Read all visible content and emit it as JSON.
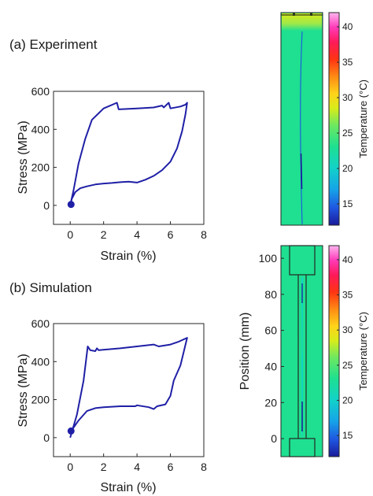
{
  "chart_data": [
    {
      "type": "line",
      "title": "(a) Experiment",
      "xlabel": "Strain (%)",
      "ylabel": "Stress (MPa)",
      "xlim": [
        -1,
        8
      ],
      "ylim": [
        -100,
        600
      ],
      "xticks": [
        0,
        2,
        4,
        6,
        8
      ],
      "yticks": [
        0,
        200,
        400,
        600
      ],
      "line_color": "#1f1fa6",
      "series": [
        {
          "x": [
            0.0,
            0.2,
            0.5,
            0.9,
            1.3,
            2.0,
            2.8,
            2.9,
            4.0,
            5.0,
            5.5,
            5.6,
            5.9,
            6.0,
            6.6,
            6.9,
            7.0,
            6.9,
            6.7,
            6.4,
            6.0,
            5.5,
            5.0,
            4.5,
            4.0,
            3.5,
            3.0,
            2.5,
            2.0,
            1.5,
            1.0,
            0.6,
            0.3,
            0.1,
            0.0
          ],
          "y": [
            0,
            80,
            220,
            350,
            450,
            510,
            540,
            505,
            510,
            515,
            525,
            515,
            540,
            510,
            520,
            530,
            540,
            480,
            390,
            300,
            230,
            185,
            155,
            135,
            120,
            125,
            122,
            118,
            115,
            110,
            100,
            90,
            70,
            35,
            0
          ]
        }
      ],
      "markers": [
        {
          "x": 0.05,
          "y": 5
        }
      ]
    },
    {
      "type": "line",
      "title": "(b) Simulation",
      "xlabel": "Strain (%)",
      "ylabel": "Stress (MPa)",
      "xlim": [
        -1,
        8
      ],
      "ylim": [
        -100,
        600
      ],
      "xticks": [
        0,
        2,
        4,
        6,
        8
      ],
      "yticks": [
        0,
        200,
        400,
        600
      ],
      "line_color": "#1f1fa6",
      "series": [
        {
          "x": [
            0.0,
            0.4,
            0.8,
            1.05,
            1.2,
            1.5,
            1.6,
            1.7,
            3.0,
            4.0,
            5.0,
            5.3,
            6.0,
            6.5,
            7.0,
            6.6,
            6.2,
            6.0,
            5.7,
            5.2,
            5.0,
            4.7,
            4.0,
            3.9,
            3.0,
            2.0,
            1.5,
            1.0,
            0.5,
            0.1
          ],
          "y": [
            0,
            120,
            300,
            480,
            460,
            455,
            470,
            460,
            470,
            480,
            490,
            480,
            490,
            505,
            525,
            380,
            300,
            220,
            175,
            165,
            150,
            160,
            170,
            165,
            165,
            160,
            155,
            140,
            90,
            40
          ]
        }
      ],
      "markers": [
        {
          "x": 0.05,
          "y": 35
        }
      ]
    }
  ],
  "heatmaps": [
    {
      "name": "experiment-temperature-map",
      "colorbar": {
        "label": "Temperature (°C)",
        "ticks": [
          15,
          20,
          25,
          30,
          35,
          40
        ],
        "range": [
          12,
          42
        ]
      },
      "background_temperature": 21
    },
    {
      "name": "simulation-temperature-map",
      "ylabel": "Position (mm)",
      "yticks": [
        0,
        20,
        40,
        60,
        80,
        100
      ],
      "ylim": [
        -10,
        107
      ],
      "colorbar": {
        "label": "Temperature (°C)",
        "ticks": [
          15,
          20,
          25,
          30,
          35,
          40
        ],
        "range": [
          12,
          42
        ]
      },
      "background_temperature": 21
    }
  ]
}
